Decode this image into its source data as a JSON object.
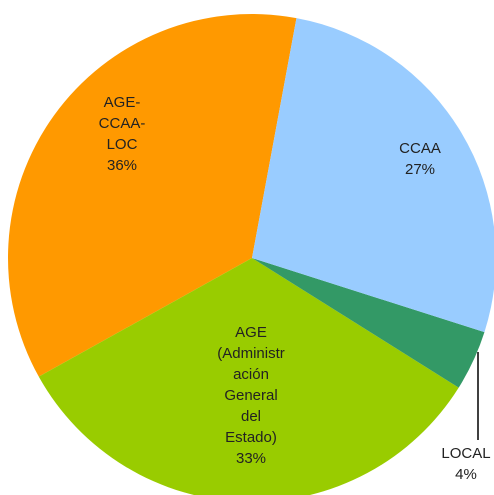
{
  "chart_data": {
    "type": "pie",
    "categories": [
      "CCAA",
      "LOCAL",
      "AGE (Administración General del Estado)",
      "AGE-CCAA-LOC"
    ],
    "values": [
      27,
      4,
      33,
      36
    ],
    "value_labels": [
      "27%",
      "4%",
      "33%",
      "36%"
    ],
    "colors": [
      "#99ccff",
      "#339966",
      "#99cc00",
      "#ff9900"
    ]
  }
}
